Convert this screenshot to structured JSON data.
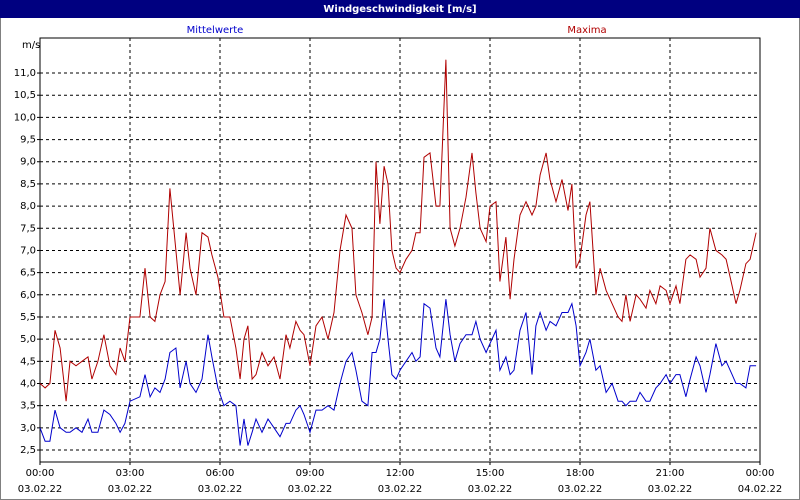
{
  "chart_data": {
    "type": "line",
    "title": "Windgeschwindigkeit [m/s]",
    "y_label": "m/s",
    "xlim": [
      0,
      24
    ],
    "xticks": [
      {
        "value": 0,
        "label": "00:00",
        "date": "03.02.22"
      },
      {
        "value": 3,
        "label": "03:00",
        "date": "03.02.22"
      },
      {
        "value": 6,
        "label": "06:00",
        "date": "03.02.22"
      },
      {
        "value": 9,
        "label": "09:00",
        "date": "03.02.22"
      },
      {
        "value": 12,
        "label": "12:00",
        "date": "03.02.22"
      },
      {
        "value": 15,
        "label": "15:00",
        "date": "03.02.22"
      },
      {
        "value": 18,
        "label": "18:00",
        "date": "03.02.22"
      },
      {
        "value": 21,
        "label": "21:00",
        "date": "03.02.22"
      },
      {
        "value": 24,
        "label": "00:00",
        "date": "04.02.22"
      }
    ],
    "ylim": [
      2.23,
      11.79
    ],
    "yticks": [
      {
        "value": 2.5,
        "label": "2,5"
      },
      {
        "value": 3,
        "label": "3,0"
      },
      {
        "value": 3.5,
        "label": "3,5"
      },
      {
        "value": 4,
        "label": "4,0"
      },
      {
        "value": 4.5,
        "label": "4,5"
      },
      {
        "value": 5,
        "label": "5,0"
      },
      {
        "value": 5.5,
        "label": "5,5"
      },
      {
        "value": 6,
        "label": "6,0"
      },
      {
        "value": 6.5,
        "label": "6,5"
      },
      {
        "value": 7,
        "label": "7,0"
      },
      {
        "value": 7.5,
        "label": "7,5"
      },
      {
        "value": 8,
        "label": "8,0"
      },
      {
        "value": 8.5,
        "label": "8,5"
      },
      {
        "value": 9,
        "label": "9,0"
      },
      {
        "value": 9.5,
        "label": "9,5"
      },
      {
        "value": 10,
        "label": "10,0"
      },
      {
        "value": 10.5,
        "label": "10,5"
      },
      {
        "value": 11,
        "label": "11,0"
      }
    ],
    "grid": true,
    "x": [
      0,
      0.17,
      0.33,
      0.5,
      0.67,
      0.87,
      1,
      1.2,
      1.4,
      1.6,
      1.73,
      1.93,
      2.13,
      2.33,
      2.53,
      2.67,
      2.83,
      3,
      3.33,
      3.5,
      3.67,
      3.83,
      4,
      4.17,
      4.33,
      4.53,
      4.67,
      4.87,
      5,
      5.2,
      5.4,
      5.6,
      5.73,
      5.93,
      6.13,
      6.33,
      6.53,
      6.67,
      6.8,
      6.93,
      7.07,
      7.2,
      7.4,
      7.6,
      7.8,
      8,
      8.2,
      8.33,
      8.53,
      8.67,
      8.8,
      9,
      9.2,
      9.4,
      9.6,
      9.8,
      10,
      10.2,
      10.4,
      10.53,
      10.73,
      10.93,
      11.07,
      11.2,
      11.33,
      11.47,
      11.6,
      11.73,
      11.87,
      12,
      12.2,
      12.4,
      12.53,
      12.67,
      12.8,
      13,
      13.2,
      13.33,
      13.53,
      13.67,
      13.83,
      14,
      14.2,
      14.4,
      14.53,
      14.67,
      14.87,
      15,
      15.2,
      15.33,
      15.53,
      15.67,
      15.8,
      16,
      16.2,
      16.4,
      16.53,
      16.67,
      16.87,
      17,
      17.2,
      17.4,
      17.6,
      17.73,
      17.87,
      18,
      18.2,
      18.33,
      18.53,
      18.67,
      18.87,
      19.07,
      19.27,
      19.4,
      19.53,
      19.67,
      19.87,
      20,
      20.2,
      20.33,
      20.53,
      20.67,
      20.87,
      21,
      21.2,
      21.33,
      21.53,
      21.67,
      21.87,
      22,
      22.2,
      22.33,
      22.53,
      22.73,
      22.87,
      23.07,
      23.2,
      23.33,
      23.53,
      23.67,
      23.87
    ],
    "series": [
      {
        "name": "Mittelwerte",
        "color": "#0000cc",
        "values": [
          3.0,
          2.7,
          2.7,
          3.4,
          3.0,
          2.9,
          2.9,
          3.0,
          2.9,
          3.2,
          2.9,
          2.9,
          3.4,
          3.3,
          3.1,
          2.9,
          3.1,
          3.6,
          3.7,
          4.2,
          3.7,
          3.9,
          3.8,
          4.1,
          4.7,
          4.8,
          3.9,
          4.5,
          4.0,
          3.8,
          4.1,
          5.1,
          4.6,
          3.9,
          3.5,
          3.6,
          3.5,
          2.6,
          3.2,
          2.6,
          2.9,
          3.2,
          2.9,
          3.2,
          3.0,
          2.8,
          3.1,
          3.1,
          3.4,
          3.5,
          3.3,
          2.9,
          3.4,
          3.4,
          3.5,
          3.4,
          4.0,
          4.5,
          4.7,
          4.3,
          3.6,
          3.5,
          4.7,
          4.7,
          5.0,
          5.9,
          5.0,
          4.2,
          4.1,
          4.3,
          4.5,
          4.7,
          4.5,
          4.6,
          5.8,
          5.7,
          4.8,
          4.6,
          5.9,
          5.1,
          4.5,
          4.9,
          5.1,
          5.1,
          5.4,
          5.0,
          4.7,
          4.9,
          5.2,
          4.3,
          4.6,
          4.2,
          4.3,
          5.2,
          5.6,
          4.2,
          5.3,
          5.6,
          5.2,
          5.4,
          5.3,
          5.6,
          5.6,
          5.8,
          5.3,
          4.4,
          4.7,
          5.0,
          4.3,
          4.4,
          3.8,
          4.0,
          3.6,
          3.6,
          3.5,
          3.6,
          3.6,
          3.8,
          3.6,
          3.6,
          3.9,
          4.0,
          4.2,
          4.0,
          4.2,
          4.2,
          3.7,
          4.1,
          4.6,
          4.4,
          3.8,
          4.2,
          4.9,
          4.4,
          4.5,
          4.2,
          4.0,
          4.0,
          3.9,
          4.4,
          4.4
        ]
      },
      {
        "name": "Maxima",
        "color": "#b00000",
        "values": [
          4.0,
          3.9,
          4.0,
          5.2,
          4.8,
          3.6,
          4.5,
          4.4,
          4.5,
          4.6,
          4.1,
          4.5,
          5.1,
          4.4,
          4.2,
          4.8,
          4.5,
          5.5,
          5.5,
          6.6,
          5.5,
          5.4,
          6.0,
          6.3,
          8.4,
          7.0,
          6.0,
          7.4,
          6.6,
          6.0,
          7.4,
          7.3,
          6.9,
          6.4,
          5.5,
          5.5,
          4.8,
          4.1,
          5.0,
          5.3,
          4.1,
          4.2,
          4.7,
          4.4,
          4.6,
          4.1,
          5.1,
          4.8,
          5.4,
          5.2,
          5.1,
          4.4,
          5.3,
          5.5,
          5.0,
          5.6,
          7.0,
          7.8,
          7.5,
          6.0,
          5.6,
          5.1,
          5.5,
          9.0,
          7.6,
          8.9,
          8.5,
          7.0,
          6.6,
          6.5,
          6.8,
          7.0,
          7.4,
          7.4,
          9.1,
          9.2,
          8.0,
          8.0,
          11.3,
          7.5,
          7.1,
          7.5,
          8.2,
          9.2,
          8.3,
          7.5,
          7.2,
          8.0,
          8.1,
          6.3,
          7.3,
          5.9,
          6.8,
          7.8,
          8.1,
          7.8,
          8.0,
          8.7,
          9.2,
          8.6,
          8.1,
          8.6,
          7.9,
          8.5,
          6.6,
          6.8,
          7.8,
          8.1,
          6.0,
          6.6,
          6.1,
          5.8,
          5.5,
          5.4,
          6.0,
          5.4,
          6.0,
          5.9,
          5.7,
          6.1,
          5.8,
          6.2,
          6.1,
          5.8,
          6.2,
          5.8,
          6.8,
          6.9,
          6.8,
          6.4,
          6.6,
          7.5,
          7.0,
          6.9,
          6.8,
          6.2,
          5.8,
          6.1,
          6.7,
          6.8,
          7.4
        ]
      }
    ]
  }
}
